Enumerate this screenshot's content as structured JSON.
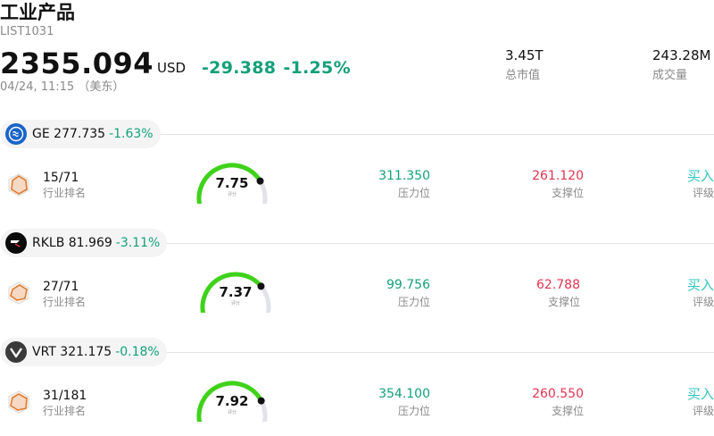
{
  "header": {
    "title": "工业产品",
    "code": "LIST1031",
    "price": "2355.094",
    "currency": "USD",
    "change": "-29.388",
    "change_pct": "-1.25%",
    "time": "04/24, 11:15 （美东）"
  },
  "stats": {
    "market_cap_value": "3.45T",
    "market_cap_label": "总市值",
    "volume_value": "243.28M",
    "volume_label": "成交量"
  },
  "colors": {
    "up": "#13a07a",
    "down": "#e0344f",
    "rating": "#2ec4c0",
    "gauge": "#3fd21a"
  },
  "stocks": [
    {
      "symbol": "GE",
      "price": "277.735",
      "change_pct": "-1.63%",
      "logo_icon": "ge-logo-icon",
      "rank": "15/71",
      "rank_label": "行业排名",
      "score": "7.75",
      "score_value": 7.75,
      "score_label": "评分",
      "resistance": "311.350",
      "resistance_label": "压力位",
      "support": "261.120",
      "support_label": "支撑位",
      "rating": "买入",
      "rating_label": "评级"
    },
    {
      "symbol": "RKLB",
      "price": "81.969",
      "change_pct": "-3.11%",
      "logo_icon": "rklb-logo-icon",
      "rank": "27/71",
      "rank_label": "行业排名",
      "score": "7.37",
      "score_value": 7.37,
      "score_label": "评分",
      "resistance": "99.756",
      "resistance_label": "压力位",
      "support": "62.788",
      "support_label": "支撑位",
      "rating": "买入",
      "rating_label": "评级"
    },
    {
      "symbol": "VRT",
      "price": "321.175",
      "change_pct": "-0.18%",
      "logo_icon": "vrt-logo-icon",
      "rank": "31/181",
      "rank_label": "行业排名",
      "score": "7.92",
      "score_value": 7.92,
      "score_label": "评分",
      "resistance": "354.100",
      "resistance_label": "压力位",
      "support": "260.550",
      "support_label": "支撑位",
      "rating": "买入",
      "rating_label": "评级"
    }
  ]
}
